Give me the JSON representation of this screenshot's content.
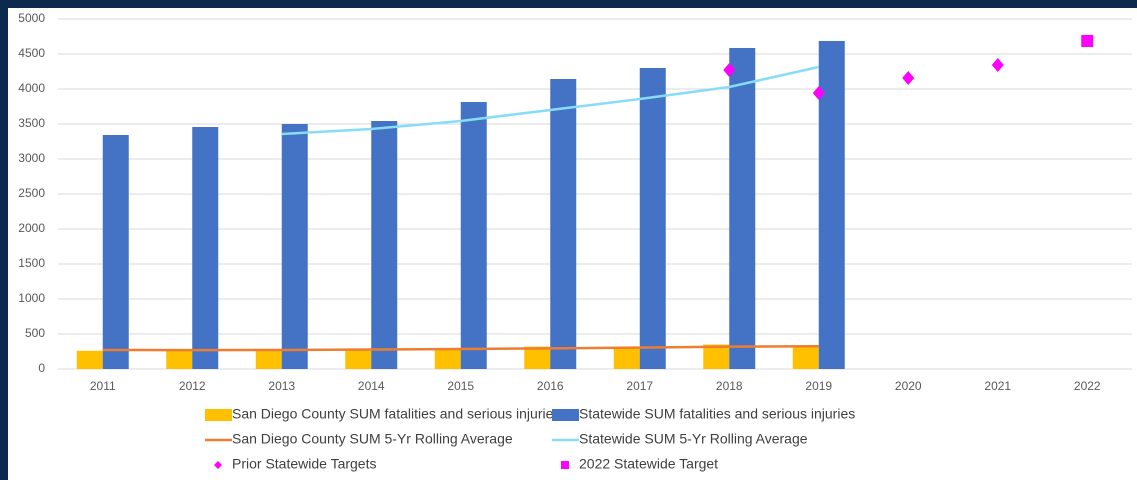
{
  "chart_data": {
    "type": "bar",
    "categories": [
      "2011",
      "2012",
      "2013",
      "2014",
      "2015",
      "2016",
      "2017",
      "2018",
      "2019",
      "2020",
      "2021",
      "2022"
    ],
    "ylim": [
      0,
      5000
    ],
    "yticks": [
      0,
      500,
      1000,
      1500,
      2000,
      2500,
      3000,
      3500,
      4000,
      4500,
      5000
    ],
    "grid": true,
    "legend": "bottom",
    "series": [
      {
        "name": "San Diego County SUM fatalities and serious injuries",
        "type": "bar",
        "color": "#ffc000",
        "values": [
          260,
          265,
          270,
          285,
          300,
          320,
          310,
          350,
          320,
          null,
          null,
          null
        ]
      },
      {
        "name": "Statewide SUM fatalities and serious injuries",
        "type": "bar",
        "color": "#4472c4",
        "values": [
          3343,
          3457,
          3500,
          3543,
          3814,
          4143,
          4300,
          4586,
          4686,
          null,
          null,
          null
        ]
      },
      {
        "name": "San Diego County SUM 5-Yr Rolling Average",
        "type": "line",
        "color": "#ed7d31",
        "values": [
          271,
          270,
          272,
          278,
          285,
          295,
          305,
          320,
          325,
          null,
          null,
          null
        ]
      },
      {
        "name": "Statewide SUM 5-Yr Rolling Average",
        "type": "line",
        "color": "#87dcfa",
        "values": [
          null,
          null,
          3357,
          3429,
          3543,
          3700,
          3857,
          4029,
          4314,
          null,
          null,
          null
        ]
      },
      {
        "name": "Prior Statewide Targets",
        "type": "scatter",
        "marker": "diamond",
        "color": "#ff00ff",
        "values": [
          null,
          null,
          null,
          null,
          null,
          null,
          null,
          4271,
          3943,
          4157,
          4343,
          null
        ]
      },
      {
        "name": "2022 Statewide Target",
        "type": "scatter",
        "marker": "square",
        "color": "#ff00ff",
        "values": [
          null,
          null,
          null,
          null,
          null,
          null,
          null,
          null,
          null,
          null,
          null,
          4686
        ]
      }
    ]
  }
}
